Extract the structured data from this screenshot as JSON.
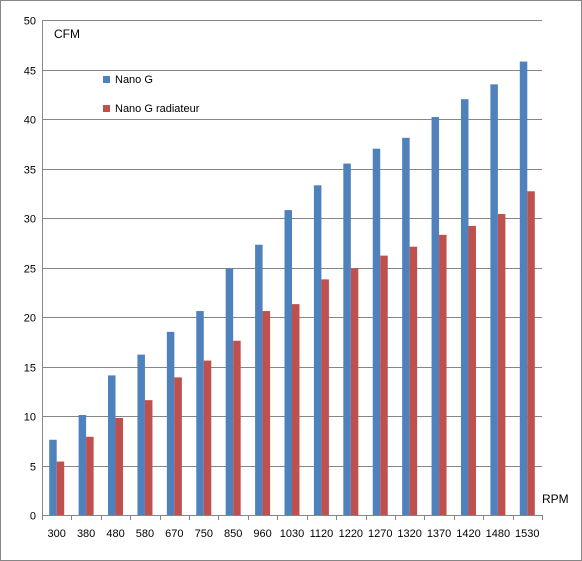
{
  "chart_data": {
    "type": "bar",
    "title": "",
    "ylabel": "CFM",
    "xlabel": "RPM",
    "ylim": [
      0,
      50
    ],
    "yticks": [
      0,
      5,
      10,
      15,
      20,
      25,
      30,
      35,
      40,
      45,
      50
    ],
    "grid": true,
    "legend_position": "upper-left",
    "categories": [
      "300",
      "380",
      "480",
      "580",
      "670",
      "750",
      "850",
      "960",
      "1030",
      "1120",
      "1220",
      "1270",
      "1320",
      "1370",
      "1420",
      "1480",
      "1530"
    ],
    "series": [
      {
        "name": "Nano G",
        "color": "#4f81bd",
        "values": [
          7.6,
          10.1,
          14.1,
          16.2,
          18.5,
          20.6,
          24.9,
          27.3,
          30.8,
          33.3,
          35.5,
          37.0,
          38.1,
          40.2,
          42.0,
          43.5,
          45.8
        ]
      },
      {
        "name": "Nano G radiateur",
        "color": "#c0504d",
        "values": [
          5.4,
          7.9,
          9.8,
          11.6,
          13.9,
          15.6,
          17.6,
          20.6,
          21.3,
          23.8,
          24.9,
          26.2,
          27.1,
          28.3,
          29.2,
          30.4,
          32.7
        ]
      }
    ]
  }
}
